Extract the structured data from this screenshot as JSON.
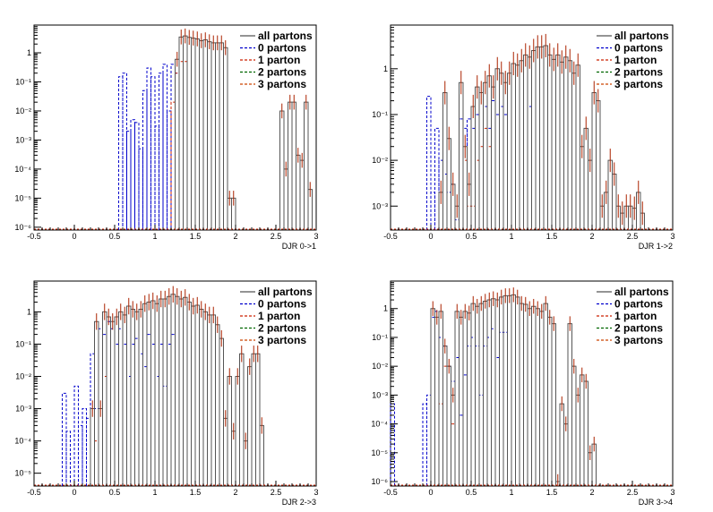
{
  "colors": {
    "all_partons": "#555555",
    "zero_partons": "#0000cc",
    "one_parton": "#cc2200",
    "two_partons": "#006600",
    "three_partons": "#cc4400"
  },
  "chart_data": [
    {
      "type": "histogram",
      "xlabel": "DJR 0->1",
      "xlim": [
        -0.5,
        3
      ],
      "ylim": [
        8e-07,
        9
      ],
      "yscale": "log",
      "x_ticks": [
        "-0.5",
        "0",
        "0.5",
        "1",
        "1.5",
        "2",
        "2.5",
        "3"
      ],
      "y_ticks": [
        {
          "v": 1e-06,
          "label": "10⁻⁶"
        },
        {
          "v": 1e-05,
          "label": "10⁻⁵"
        },
        {
          "v": 0.0001,
          "label": "10⁻⁴"
        },
        {
          "v": 0.001,
          "label": "10⁻³"
        },
        {
          "v": 0.01,
          "label": "10⁻²"
        },
        {
          "v": 0.1,
          "label": "10⁻¹"
        },
        {
          "v": 1,
          "label": "1"
        }
      ],
      "legend": [
        "all partons",
        "0 partons",
        "1 parton",
        "2 partons",
        "3 partons"
      ],
      "bin_width": 0.05,
      "series": [
        {
          "name": "0 partons",
          "x": [
            0.55,
            0.6,
            0.65,
            0.7,
            0.75,
            0.8,
            0.85,
            0.9,
            0.95,
            1.0,
            1.05,
            1.1,
            1.15,
            1.2,
            1.25
          ],
          "values": [
            0.15,
            0.2,
            0.002,
            0.005,
            0.004,
            0.0005,
            0.05,
            0.3,
            0.15,
            0.003,
            0.2,
            0.4,
            0.01,
            0.4,
            0.2
          ]
        },
        {
          "name": "1 parton",
          "x": [
            1.2,
            1.25,
            1.3,
            1.35
          ],
          "values": [
            0.02,
            0.2,
            0.5,
            0.5
          ]
        },
        {
          "name": "all partons",
          "x": [
            1.25,
            1.3,
            1.35,
            1.4,
            1.45,
            1.5,
            1.55,
            1.6,
            1.65,
            1.7,
            1.75,
            1.8,
            1.85,
            1.9,
            1.95,
            2.55,
            2.6,
            2.65,
            2.7,
            2.75,
            2.8,
            2.85,
            2.9
          ],
          "values": [
            0.6,
            3.5,
            3.8,
            3.4,
            3.2,
            3.0,
            2.6,
            2.8,
            2.4,
            2.2,
            2.2,
            2.2,
            1.5,
            1e-05,
            1e-05,
            0.01,
            0.0001,
            0.02,
            0.02,
            0.0003,
            0.0002,
            0.02,
            2e-05
          ]
        }
      ]
    },
    {
      "type": "histogram",
      "xlabel": "DJR 1->2",
      "xlim": [
        -0.5,
        3
      ],
      "ylim": [
        0.0003,
        9
      ],
      "yscale": "log",
      "x_ticks": [
        "-0.5",
        "0",
        "0.5",
        "1",
        "1.5",
        "2",
        "2.5",
        "3"
      ],
      "y_ticks": [
        {
          "v": 0.001,
          "label": "10⁻³"
        },
        {
          "v": 0.01,
          "label": "10⁻²"
        },
        {
          "v": 0.1,
          "label": "10⁻¹"
        },
        {
          "v": 1,
          "label": "1"
        }
      ],
      "legend": [
        "all partons",
        "0 partons",
        "1 parton",
        "2 partons",
        "3 partons"
      ],
      "bin_width": 0.05,
      "series": [
        {
          "name": "0 partons",
          "x": [
            -0.05,
            0.0,
            0.05,
            0.1,
            0.15,
            0.2,
            0.25,
            0.3,
            0.35,
            0.4,
            0.45,
            0.5,
            0.55,
            0.6,
            0.65,
            0.7,
            0.75,
            0.8,
            0.85,
            0.9,
            1.2
          ],
          "values": [
            0.25,
            0.002,
            0.05,
            0.01,
            0.005,
            0.002,
            0.003,
            0.0005,
            0.08,
            0.05,
            0.08,
            0.05,
            0.1,
            0.3,
            0.15,
            0.05,
            0.2,
            0.1,
            0.15,
            0.1,
            0.15
          ]
        },
        {
          "name": "1 parton",
          "x": [
            0.4,
            0.45,
            0.5,
            0.55,
            0.6,
            0.65,
            0.7
          ],
          "values": [
            0.01,
            0.001,
            0.001,
            0.01,
            0.02,
            0.05,
            0.02
          ]
        },
        {
          "name": "all partons",
          "x": [
            0.1,
            0.15,
            0.2,
            0.25,
            0.3,
            0.35,
            0.4,
            0.45,
            0.5,
            0.55,
            0.6,
            0.65,
            0.7,
            0.75,
            0.8,
            0.85,
            0.9,
            0.95,
            1.0,
            1.05,
            1.1,
            1.15,
            1.2,
            1.25,
            1.3,
            1.35,
            1.4,
            1.45,
            1.5,
            1.55,
            1.6,
            1.65,
            1.7,
            1.75,
            1.8,
            1.85,
            1.9,
            1.95,
            2.0,
            2.05,
            2.1,
            2.15,
            2.2,
            2.25,
            2.3,
            2.35,
            2.4,
            2.45,
            2.5,
            2.55,
            2.6
          ],
          "values": [
            0.002,
            0.3,
            0.03,
            0.003,
            0.001,
            0.5,
            0.02,
            0.003,
            0.15,
            0.4,
            0.3,
            0.5,
            0.7,
            0.4,
            1.0,
            0.8,
            0.5,
            0.8,
            1.3,
            1.2,
            1.5,
            2.0,
            1.8,
            2.5,
            3.0,
            3.0,
            3.2,
            2.0,
            1.6,
            2.0,
            1.4,
            1.8,
            1.5,
            0.8,
            1.2,
            0.02,
            0.05,
            0.01,
            0.3,
            0.2,
            0.001,
            0.002,
            0.01,
            0.005,
            0.001,
            0.0007,
            0.001,
            0.001,
            0.0009,
            0.002,
            0.0007
          ]
        }
      ]
    },
    {
      "type": "histogram",
      "xlabel": "DJR 2->3",
      "xlim": [
        -0.5,
        3
      ],
      "ylim": [
        4e-06,
        9
      ],
      "yscale": "log",
      "x_ticks": [
        "-0.5",
        "0",
        "0.5",
        "1",
        "1.5",
        "2",
        "2.5",
        "3"
      ],
      "y_ticks": [
        {
          "v": 1e-05,
          "label": "10⁻⁵"
        },
        {
          "v": 0.0001,
          "label": "10⁻⁴"
        },
        {
          "v": 0.001,
          "label": "10⁻³"
        },
        {
          "v": 0.01,
          "label": "10⁻²"
        },
        {
          "v": 0.1,
          "label": "10⁻¹"
        },
        {
          "v": 1,
          "label": "1"
        }
      ],
      "legend": [
        "all partons",
        "0 partons",
        "1 parton",
        "2 partons",
        "3 partons"
      ],
      "bin_width": 0.05,
      "series": [
        {
          "name": "0 partons",
          "x": [
            -0.15,
            -0.1,
            0.0,
            0.05,
            0.1,
            0.15,
            0.2,
            0.25,
            0.3,
            0.35,
            0.4,
            0.45,
            0.5,
            0.55,
            0.6,
            0.65,
            0.7,
            0.75,
            0.8,
            0.85,
            0.9,
            0.95,
            1.0,
            1.05,
            1.1,
            1.15,
            1.2
          ],
          "values": [
            0.003,
            0.0002,
            0.005,
            0.0003,
            0.001,
            0.0005,
            0.05,
            0.001,
            0.3,
            0.2,
            0.5,
            0.3,
            0.1,
            0.3,
            0.1,
            0.01,
            0.1,
            0.15,
            0.05,
            0.02,
            0.2,
            0.1,
            0.01,
            0.1,
            0.005,
            0.1,
            0.2
          ]
        },
        {
          "name": "1 parton",
          "x": [
            0.25,
            0.3,
            0.35
          ],
          "values": [
            0.0001,
            0.001,
            0.01
          ]
        },
        {
          "name": "all partons",
          "x": [
            0.2,
            0.25,
            0.3,
            0.35,
            0.4,
            0.45,
            0.5,
            0.55,
            0.6,
            0.65,
            0.7,
            0.75,
            0.8,
            0.85,
            0.9,
            0.95,
            1.0,
            1.05,
            1.1,
            1.15,
            1.2,
            1.25,
            1.3,
            1.35,
            1.4,
            1.45,
            1.5,
            1.55,
            1.6,
            1.65,
            1.7,
            1.75,
            1.8,
            1.85,
            1.9,
            1.95,
            2.0,
            2.05,
            2.1,
            2.15,
            2.2,
            2.25,
            2.3
          ],
          "values": [
            0.001,
            0.5,
            0.001,
            1.0,
            0.7,
            0.5,
            0.7,
            1.0,
            0.8,
            1.5,
            1.2,
            1.0,
            1.2,
            1.8,
            2.0,
            2.2,
            1.8,
            2.5,
            2.5,
            3.0,
            3.5,
            3.0,
            2.5,
            2.8,
            2.0,
            1.5,
            1.6,
            1.2,
            1.0,
            0.8,
            0.8,
            0.4,
            0.15,
            0.0005,
            0.01,
            0.0002,
            0.01,
            0.05,
            0.0001,
            0.02,
            0.05,
            0.05,
            0.0003
          ]
        }
      ]
    },
    {
      "type": "histogram",
      "xlabel": "DJR 3->4",
      "xlim": [
        -0.5,
        3
      ],
      "ylim": [
        7e-07,
        9
      ],
      "yscale": "log",
      "x_ticks": [
        "-0.5",
        "0",
        "0.5",
        "1",
        "1.5",
        "2",
        "2.5",
        "3"
      ],
      "y_ticks": [
        {
          "v": 1e-06,
          "label": "10⁻⁶"
        },
        {
          "v": 1e-05,
          "label": "10⁻⁵"
        },
        {
          "v": 0.0001,
          "label": "10⁻⁴"
        },
        {
          "v": 0.001,
          "label": "10⁻³"
        },
        {
          "v": 0.01,
          "label": "10⁻²"
        },
        {
          "v": 0.1,
          "label": "10⁻¹"
        },
        {
          "v": 1,
          "label": "1"
        }
      ],
      "legend": [
        "all partons",
        "0 partons",
        "1 parton",
        "2 partons",
        "3 partons"
      ],
      "bin_width": 0.05,
      "series": [
        {
          "name": "0 partons",
          "x": [
            -0.5,
            -0.1,
            -0.05,
            0.0,
            0.05,
            0.1,
            0.15,
            0.2,
            0.25,
            0.3,
            0.35,
            0.4,
            0.45,
            0.5,
            0.55,
            0.6,
            0.65,
            0.7,
            0.75,
            0.8,
            0.85,
            0.9
          ],
          "values": [
            0.0005,
            0.0005,
            0.001,
            0.5,
            0.8,
            0.1,
            0.05,
            0.01,
            0.003,
            0.02,
            0.0002,
            0.005,
            0.05,
            0.1,
            0.05,
            0.001,
            0.05,
            0.1,
            0.2,
            0.02,
            0.15,
            0.15
          ]
        },
        {
          "name": "1 parton",
          "x": [
            0.1,
            0.15,
            0.2,
            0.25
          ],
          "values": [
            0.0005,
            0.01,
            0.01,
            0.0001
          ]
        },
        {
          "name": "all partons",
          "x": [
            0.0,
            0.05,
            0.1,
            0.15,
            0.2,
            0.25,
            0.3,
            0.35,
            0.4,
            0.45,
            0.5,
            0.55,
            0.6,
            0.65,
            0.7,
            0.75,
            0.8,
            0.85,
            0.9,
            0.95,
            1.0,
            1.05,
            1.1,
            1.15,
            1.2,
            1.25,
            1.3,
            1.35,
            1.4,
            1.45,
            1.5,
            1.55,
            1.6,
            1.65,
            1.7,
            1.75,
            1.8,
            1.85,
            1.9,
            1.95,
            2.0
          ],
          "values": [
            1.0,
            0.5,
            0.8,
            0.05,
            0.01,
            0.001,
            0.8,
            0.5,
            0.8,
            0.7,
            1.5,
            1.2,
            1.5,
            1.8,
            2.0,
            2.2,
            2.0,
            2.5,
            2.8,
            2.8,
            3.0,
            2.5,
            1.5,
            1.4,
            1.0,
            1.2,
            1.0,
            0.8,
            1.5,
            0.5,
            0.3,
            1e-06,
            0.0005,
            0.0001,
            0.3,
            0.01,
            0.001,
            0.005,
            0.003,
            1e-05,
            2e-05
          ]
        }
      ]
    }
  ]
}
